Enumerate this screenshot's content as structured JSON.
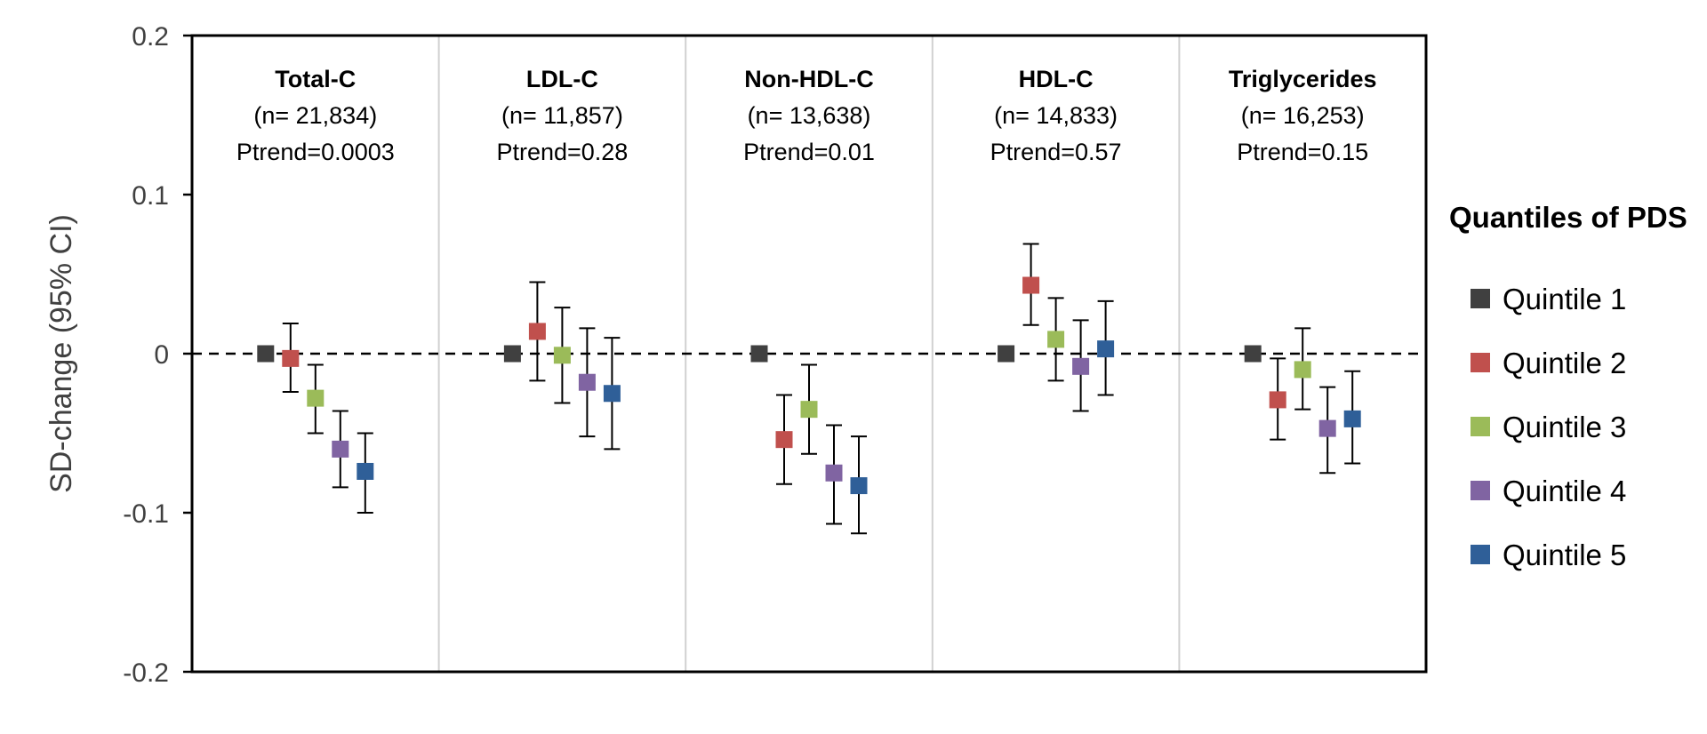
{
  "chart_data": {
    "type": "scatter",
    "subtype": "forest-plot with error bars",
    "ylabel": "SD-change (95% CI)",
    "ylim": [
      -0.2,
      0.2
    ],
    "yticks": [
      0.2,
      0.1,
      0,
      -0.1,
      -0.2
    ],
    "ytick_labels": [
      "0.2",
      "0.1",
      "0",
      "-0.1",
      "-0.2"
    ],
    "reference_line": 0,
    "legend": {
      "title": "Quantiles of PDS",
      "position": "right",
      "entries": [
        {
          "label": "Quintile 1",
          "color": "#404040"
        },
        {
          "label": "Quintile 2",
          "color": "#c0504d"
        },
        {
          "label": "Quintile 3",
          "color": "#9bbb59"
        },
        {
          "label": "Quintile 4",
          "color": "#8064a2"
        },
        {
          "label": "Quintile 5",
          "color": "#2f5f98"
        }
      ]
    },
    "panels": [
      {
        "title": "Total-C",
        "n": "(n= 21,834)",
        "ptrend": "Ptrend=0.0003",
        "points": [
          {
            "quintile": "Quintile 1",
            "value": 0.0,
            "low": null,
            "high": null
          },
          {
            "quintile": "Quintile 2",
            "value": -0.003,
            "low": -0.024,
            "high": 0.019
          },
          {
            "quintile": "Quintile 3",
            "value": -0.028,
            "low": -0.05,
            "high": -0.007
          },
          {
            "quintile": "Quintile 4",
            "value": -0.06,
            "low": -0.084,
            "high": -0.036
          },
          {
            "quintile": "Quintile 5",
            "value": -0.074,
            "low": -0.1,
            "high": -0.05
          }
        ]
      },
      {
        "title": "LDL-C",
        "n": "(n= 11,857)",
        "ptrend": "Ptrend=0.28",
        "points": [
          {
            "quintile": "Quintile 1",
            "value": 0.0,
            "low": null,
            "high": null
          },
          {
            "quintile": "Quintile 2",
            "value": 0.014,
            "low": -0.017,
            "high": 0.045
          },
          {
            "quintile": "Quintile 3",
            "value": -0.001,
            "low": -0.031,
            "high": 0.029
          },
          {
            "quintile": "Quintile 4",
            "value": -0.018,
            "low": -0.052,
            "high": 0.016
          },
          {
            "quintile": "Quintile 5",
            "value": -0.025,
            "low": -0.06,
            "high": 0.01
          }
        ]
      },
      {
        "title": "Non-HDL-C",
        "n": "(n= 13,638)",
        "ptrend": "Ptrend=0.01",
        "points": [
          {
            "quintile": "Quintile 1",
            "value": 0.0,
            "low": null,
            "high": null
          },
          {
            "quintile": "Quintile 2",
            "value": -0.054,
            "low": -0.082,
            "high": -0.026
          },
          {
            "quintile": "Quintile 3",
            "value": -0.035,
            "low": -0.063,
            "high": -0.007
          },
          {
            "quintile": "Quintile 4",
            "value": -0.075,
            "low": -0.107,
            "high": -0.045
          },
          {
            "quintile": "Quintile 5",
            "value": -0.083,
            "low": -0.113,
            "high": -0.052
          }
        ]
      },
      {
        "title": "HDL-C",
        "n": "(n= 14,833)",
        "ptrend": "Ptrend=0.57",
        "points": [
          {
            "quintile": "Quintile 1",
            "value": 0.0,
            "low": null,
            "high": null
          },
          {
            "quintile": "Quintile 2",
            "value": 0.043,
            "low": 0.018,
            "high": 0.069
          },
          {
            "quintile": "Quintile 3",
            "value": 0.009,
            "low": -0.017,
            "high": 0.035
          },
          {
            "quintile": "Quintile 4",
            "value": -0.008,
            "low": -0.036,
            "high": 0.021
          },
          {
            "quintile": "Quintile 5",
            "value": 0.003,
            "low": -0.026,
            "high": 0.033
          }
        ]
      },
      {
        "title": "Triglycerides",
        "n": "(n= 16,253)",
        "ptrend": "Ptrend=0.15",
        "points": [
          {
            "quintile": "Quintile 1",
            "value": 0.0,
            "low": null,
            "high": null
          },
          {
            "quintile": "Quintile 2",
            "value": -0.029,
            "low": -0.054,
            "high": -0.003
          },
          {
            "quintile": "Quintile 3",
            "value": -0.01,
            "low": -0.035,
            "high": 0.016
          },
          {
            "quintile": "Quintile 4",
            "value": -0.047,
            "low": -0.075,
            "high": -0.021
          },
          {
            "quintile": "Quintile 5",
            "value": -0.041,
            "low": -0.069,
            "high": -0.011
          }
        ]
      }
    ]
  }
}
